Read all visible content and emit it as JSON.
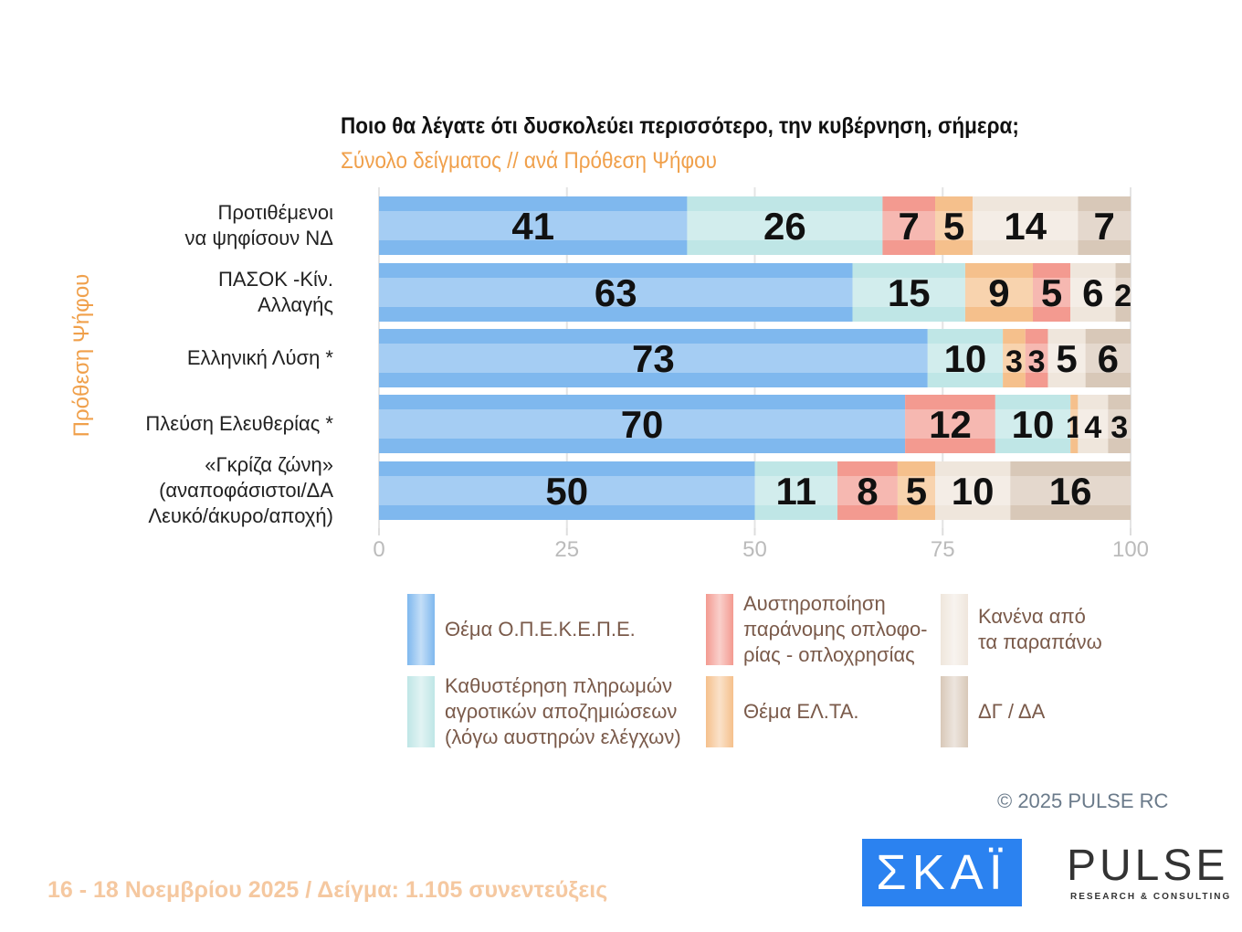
{
  "chart_data": {
    "type": "bar",
    "orientation": "horizontal",
    "stacked": true,
    "title": "Ποιο θα λέγατε ότι δυσκολεύει περισσότερο, την κυβέρνηση, σήμερα;",
    "subtitle": "Σύνολο δείγματος // ανά Πρόθεση Ψήφου",
    "ylabel": "Πρόθεση Ψήφου",
    "xlim": [
      0,
      100
    ],
    "xticks": [
      "0",
      "25",
      "50",
      "75",
      "100"
    ],
    "grid": true,
    "legend": "bottom",
    "categories": [
      "Προτιθέμενοι\nνα ψηφίσουν ΝΔ",
      "ΠΑΣΟΚ -Κίν.\nΑλλαγής",
      "Ελληνική Λύση *",
      "Πλεύση Ελευθερίας *",
      "«Γκρίζα ζώνη»\n(αναποφάσιστοι/ΔΑ\nΛευκό/άκυρο/αποχή)"
    ],
    "series": [
      {
        "name": "Θέμα Ο.Π.Ε.Κ.Ε.Π.Ε.",
        "color": "#7fb8ee",
        "values": [
          41,
          63,
          73,
          70,
          50
        ]
      },
      {
        "name": "Καθυστέρηση πληρωμών\nαγροτικών αποζημιώσεων\n(λόγω αυστηρών ελέγχων)",
        "color": "#bfe6e6",
        "values": [
          26,
          15,
          10,
          10,
          11
        ]
      },
      {
        "name": "Αυστηροποίηση\nπαράνομης οπλοφο-\nρίας - οπλοχρησίας",
        "color": "#f39a90",
        "values": [
          7,
          5,
          3,
          12,
          8
        ]
      },
      {
        "name": "Θέμα ΕΛ.ΤΑ.",
        "color": "#f5c08c",
        "values": [
          5,
          9,
          3,
          1,
          5
        ]
      },
      {
        "name": "Κανένα από\nτα παραπάνω",
        "color": "#efe6dc",
        "values": [
          14,
          6,
          5,
          4,
          10
        ]
      },
      {
        "name": "ΔΓ / ΔΑ",
        "color": "#d8c8b8",
        "values": [
          7,
          2,
          6,
          3,
          16
        ]
      }
    ],
    "segment_order": [
      [
        0,
        1,
        2,
        3,
        4,
        5
      ],
      [
        0,
        1,
        3,
        2,
        4,
        5
      ],
      [
        0,
        1,
        3,
        2,
        4,
        5
      ],
      [
        0,
        2,
        1,
        3,
        4,
        5
      ],
      [
        0,
        1,
        2,
        3,
        4,
        5
      ]
    ]
  },
  "legend_layout": [
    0,
    2,
    4,
    1,
    3,
    5
  ],
  "copyright": "©  2025  PULSE RC",
  "footer": "16 - 18 Νοεμβρίου 2025  /  Δείγμα:  1.105 συνεντεύξεις",
  "logos": {
    "skai": "ΣΚΑΪ",
    "pulse": "PULSE",
    "pulse_sub": "RESEARCH & CONSULTING"
  }
}
